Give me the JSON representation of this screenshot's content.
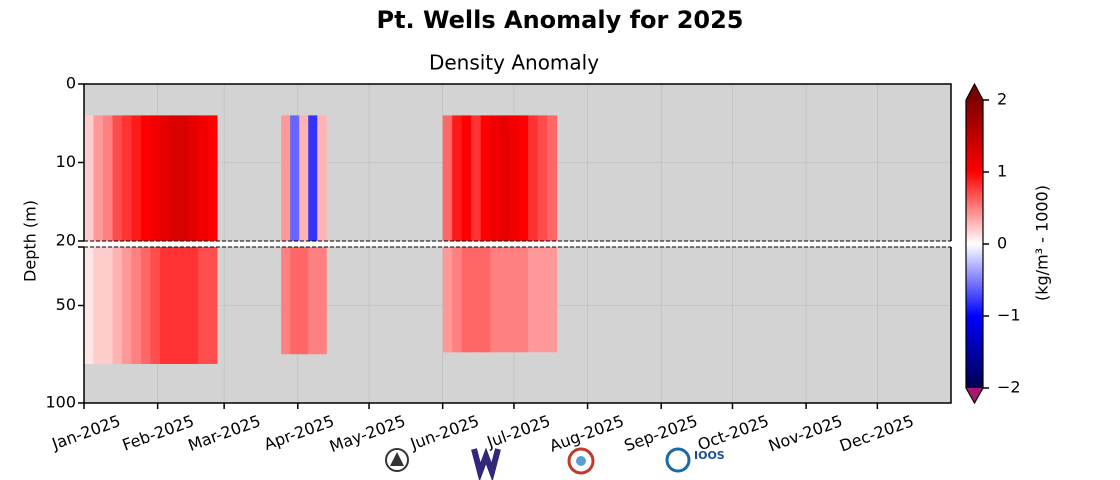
{
  "chart_data": {
    "type": "heatmap",
    "title": "Pt. Wells Anomaly for 2025",
    "subtitle": "Density Anomaly",
    "y_label": "Depth (m)",
    "colorbar_label": "(kg/m³ - 1000)",
    "xlim": [
      "2025-01-01",
      "2026-01-01"
    ],
    "xticks": [
      {
        "value": "2025-01-01",
        "label": "Jan-2025"
      },
      {
        "value": "2025-02-01",
        "label": "Feb-2025"
      },
      {
        "value": "2025-03-01",
        "label": "Mar-2025"
      },
      {
        "value": "2025-04-01",
        "label": "Apr-2025"
      },
      {
        "value": "2025-05-01",
        "label": "May-2025"
      },
      {
        "value": "2025-06-01",
        "label": "Jun-2025"
      },
      {
        "value": "2025-07-01",
        "label": "Jul-2025"
      },
      {
        "value": "2025-08-01",
        "label": "Aug-2025"
      },
      {
        "value": "2025-09-01",
        "label": "Sep-2025"
      },
      {
        "value": "2025-10-01",
        "label": "Oct-2025"
      },
      {
        "value": "2025-11-01",
        "label": "Nov-2025"
      },
      {
        "value": "2025-12-01",
        "label": "Dec-2025"
      }
    ],
    "ylim": [
      0,
      20
    ],
    "yticks": [
      0,
      10,
      20
    ],
    "ylim_lower": [
      20,
      100
    ],
    "yticks_lower": [
      20,
      50,
      100
    ],
    "grid": true,
    "background": "#d3d3d3",
    "clim": [
      -2,
      2
    ],
    "cticks": [
      {
        "value": -2,
        "label": "−2"
      },
      {
        "value": -1,
        "label": "−1"
      },
      0,
      1,
      2
    ],
    "over_color": "#7a0000",
    "under_color": "#a8186e",
    "blocks": [
      {
        "start": "2025-01-01",
        "end": "2025-02-26",
        "min_depth": 4,
        "max_depth": 80,
        "top": [
          0.2,
          0.4,
          0.5,
          0.7,
          0.8,
          0.9,
          1.0,
          1.1,
          1.2,
          1.3,
          1.3,
          1.2,
          1.1,
          1.0
        ],
        "bottom": [
          0.1,
          0.2,
          0.2,
          0.3,
          0.4,
          0.5,
          0.6,
          0.7,
          0.8,
          0.8,
          0.8,
          0.8,
          0.7,
          0.7
        ]
      },
      {
        "start": "2025-03-25",
        "end": "2025-04-13",
        "min_depth": 4,
        "max_depth": 75,
        "top": [
          0.4,
          -0.6,
          0.3,
          -0.8,
          0.3
        ],
        "bottom": [
          0.5,
          0.6,
          0.6,
          0.5,
          0.5
        ]
      },
      {
        "start": "2025-06-01",
        "end": "2025-07-19",
        "min_depth": 4,
        "max_depth": 74,
        "top": [
          0.6,
          0.9,
          1.0,
          0.8,
          1.0,
          1.1,
          1.2,
          1.1,
          1.0,
          0.8,
          0.7,
          0.6
        ],
        "bottom": [
          0.4,
          0.5,
          0.6,
          0.6,
          0.6,
          0.5,
          0.5,
          0.5,
          0.5,
          0.4,
          0.4,
          0.4
        ]
      }
    ]
  },
  "logo_text": "IOOS"
}
